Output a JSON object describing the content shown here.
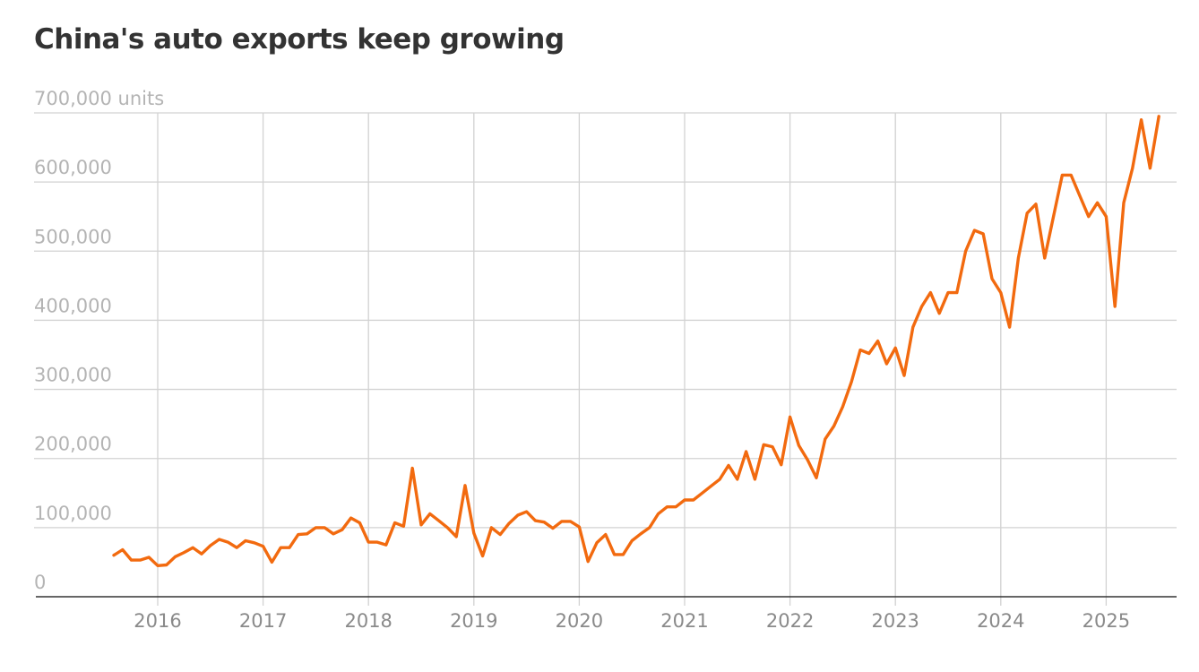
{
  "chart_data": {
    "type": "line",
    "title": "China's auto exports keep growing",
    "ylabel_unit": "units",
    "ylim": [
      0,
      700000
    ],
    "y_ticks": [
      0,
      100000,
      200000,
      300000,
      400000,
      500000,
      600000,
      700000
    ],
    "y_tick_labels": [
      "0",
      "100,000",
      "200,000",
      "300,000",
      "400,000",
      "500,000",
      "600,000",
      "700,000 units"
    ],
    "x_ticks": [
      2016,
      2017,
      2018,
      2019,
      2020,
      2021,
      2022,
      2023,
      2024,
      2025
    ],
    "x_tick_labels": [
      "2016",
      "2017",
      "2018",
      "2019",
      "2020",
      "2021",
      "2022",
      "2023",
      "2024",
      "2025"
    ],
    "grid": true,
    "series": [
      {
        "name": "Auto exports",
        "color": "#f26a0f",
        "start": "2015-08",
        "values": [
          60000,
          68000,
          53000,
          53000,
          57000,
          45000,
          46000,
          58000,
          64000,
          71000,
          62000,
          74000,
          83000,
          79000,
          71000,
          81000,
          78000,
          73000,
          50000,
          71000,
          71000,
          90000,
          91000,
          100000,
          100000,
          91000,
          97000,
          114000,
          107000,
          79000,
          79000,
          75000,
          107000,
          102000,
          186000,
          104000,
          120000,
          110000,
          100000,
          87000,
          161000,
          92000,
          59000,
          100000,
          90000,
          106000,
          118000,
          123000,
          110000,
          108000,
          99000,
          109000,
          109000,
          101000,
          51000,
          78000,
          90000,
          61000,
          61000,
          81000,
          91000,
          100000,
          120000,
          130000,
          130000,
          140000,
          140000,
          150000,
          160000,
          170000,
          190000,
          170000,
          210000,
          170000,
          220000,
          217000,
          191000,
          260000,
          219000,
          198000,
          172000,
          228000,
          247000,
          275000,
          311000,
          357000,
          352000,
          370000,
          337000,
          360000,
          320000,
          390000,
          420000,
          440000,
          410000,
          440000,
          440000,
          500000,
          530000,
          525000,
          460000,
          440000,
          390000,
          490000,
          555000,
          568000,
          490000,
          550000,
          610000,
          610000,
          580000,
          550000,
          570000,
          550000,
          420000,
          570000,
          620000,
          690000,
          620000,
          695000
        ]
      }
    ]
  }
}
